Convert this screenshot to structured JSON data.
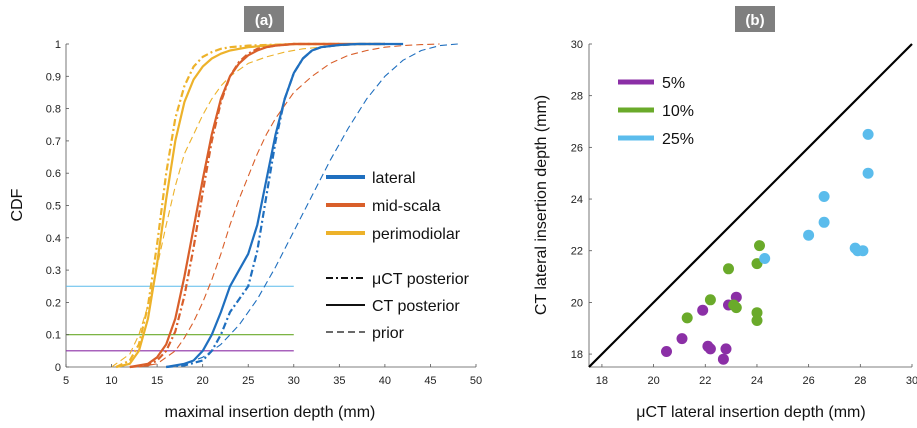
{
  "panel_a": {
    "tag": "(a)",
    "chart_data": {
      "type": "line",
      "xlabel": "maximal insertion depth (mm)",
      "ylabel": "CDF",
      "xlim": [
        5,
        50
      ],
      "ylim": [
        0,
        1
      ],
      "xticks": [
        "5",
        "10",
        "15",
        "20",
        "25",
        "30",
        "35",
        "40",
        "45",
        "50"
      ],
      "yticks": [
        "0",
        "0.1",
        "0.2",
        "0.3",
        "0.4",
        "0.5",
        "0.6",
        "0.7",
        "0.8",
        "0.9",
        "1"
      ],
      "legend_position": "center-right",
      "legend_colors": [
        {
          "name": "lateral",
          "color": "#1f6fbf"
        },
        {
          "name": "mid-scala",
          "color": "#d95f2a"
        },
        {
          "name": "perimodiolar",
          "color": "#edb22a"
        }
      ],
      "legend_styles": [
        {
          "name": "μCT posterior",
          "dash": "dashdot"
        },
        {
          "name": "CT posterior",
          "dash": "solid"
        },
        {
          "name": "prior",
          "dash": "dashed"
        }
      ],
      "threshold_lines": [
        {
          "y": 0.05,
          "color": "#8b2fa6"
        },
        {
          "y": 0.1,
          "color": "#6aaa2a"
        },
        {
          "y": 0.25,
          "color": "#5bbcec"
        }
      ],
      "threshold_x_range": [
        5,
        30
      ],
      "curves": [
        {
          "group": "perimodiolar",
          "style": "solid",
          "x": [
            10.5,
            12,
            13,
            14,
            15,
            16,
            17,
            18,
            19,
            20,
            21,
            22,
            23,
            25,
            27,
            30,
            35,
            40
          ],
          "y": [
            0,
            0.01,
            0.05,
            0.15,
            0.32,
            0.52,
            0.7,
            0.82,
            0.89,
            0.93,
            0.955,
            0.97,
            0.98,
            0.99,
            0.995,
            1,
            1,
            1
          ]
        },
        {
          "group": "perimodiolar",
          "style": "dashdot",
          "x": [
            10.5,
            12,
            13,
            14,
            15,
            16,
            17,
            18,
            19,
            20,
            21,
            22,
            23,
            25,
            30,
            35
          ],
          "y": [
            0,
            0.02,
            0.07,
            0.19,
            0.38,
            0.6,
            0.77,
            0.87,
            0.93,
            0.96,
            0.975,
            0.985,
            0.99,
            0.995,
            1,
            1
          ]
        },
        {
          "group": "perimodiolar",
          "style": "dashed",
          "x": [
            10,
            12,
            13,
            14,
            15,
            16,
            17,
            18,
            19,
            20,
            21,
            22,
            23,
            24,
            25,
            27,
            29,
            31,
            34,
            37,
            40
          ],
          "y": [
            0,
            0.04,
            0.1,
            0.19,
            0.31,
            0.44,
            0.56,
            0.66,
            0.72,
            0.78,
            0.83,
            0.87,
            0.9,
            0.92,
            0.94,
            0.96,
            0.975,
            0.985,
            0.993,
            0.998,
            1
          ]
        },
        {
          "group": "mid-scala",
          "style": "solid",
          "x": [
            12,
            14,
            15,
            16,
            17,
            18,
            19,
            20,
            21,
            22,
            23,
            24,
            25,
            26,
            27,
            28,
            30,
            33,
            36,
            40
          ],
          "y": [
            0,
            0.01,
            0.03,
            0.07,
            0.15,
            0.28,
            0.43,
            0.58,
            0.72,
            0.83,
            0.9,
            0.94,
            0.965,
            0.98,
            0.99,
            0.995,
            1,
            1,
            1,
            1
          ]
        },
        {
          "group": "mid-scala",
          "style": "dashdot",
          "x": [
            12,
            14,
            15,
            16,
            17,
            18,
            19,
            20,
            21,
            22,
            23,
            24,
            25,
            26,
            28,
            30,
            35
          ],
          "y": [
            0,
            0.005,
            0.02,
            0.05,
            0.11,
            0.22,
            0.37,
            0.54,
            0.7,
            0.82,
            0.9,
            0.945,
            0.97,
            0.985,
            0.995,
            1,
            1
          ]
        },
        {
          "group": "mid-scala",
          "style": "dashed",
          "x": [
            13,
            15,
            16,
            17,
            18,
            19,
            20,
            21,
            22,
            23,
            24,
            25,
            26,
            27,
            28,
            29,
            30,
            32,
            34,
            36,
            38,
            40,
            42,
            44,
            46
          ],
          "y": [
            0,
            0.01,
            0.03,
            0.05,
            0.09,
            0.14,
            0.2,
            0.27,
            0.35,
            0.44,
            0.52,
            0.59,
            0.66,
            0.72,
            0.77,
            0.81,
            0.85,
            0.9,
            0.94,
            0.965,
            0.98,
            0.99,
            0.995,
            0.998,
            1
          ]
        },
        {
          "group": "lateral",
          "style": "solid",
          "x": [
            16,
            18,
            19,
            20,
            21,
            22,
            23,
            24,
            25,
            26,
            27,
            28,
            29,
            30,
            31,
            32,
            33,
            35,
            37,
            40,
            42
          ],
          "y": [
            0,
            0.01,
            0.02,
            0.05,
            0.1,
            0.17,
            0.25,
            0.3,
            0.35,
            0.44,
            0.58,
            0.72,
            0.83,
            0.91,
            0.955,
            0.98,
            0.99,
            0.997,
            1,
            1,
            1
          ]
        },
        {
          "group": "lateral",
          "style": "dashdot",
          "x": [
            16,
            18,
            20,
            21,
            22,
            23,
            24,
            25,
            26,
            27,
            28,
            29,
            30,
            31,
            32,
            33,
            35,
            37,
            40
          ],
          "y": [
            0,
            0.005,
            0.02,
            0.05,
            0.1,
            0.17,
            0.21,
            0.25,
            0.36,
            0.53,
            0.7,
            0.83,
            0.91,
            0.955,
            0.98,
            0.99,
            0.997,
            1,
            1
          ]
        },
        {
          "group": "lateral",
          "style": "dashed",
          "x": [
            16,
            18,
            20,
            22,
            24,
            26,
            28,
            30,
            32,
            34,
            36,
            38,
            40,
            42,
            44,
            46,
            48
          ],
          "y": [
            0,
            0.01,
            0.03,
            0.07,
            0.13,
            0.21,
            0.31,
            0.42,
            0.53,
            0.64,
            0.74,
            0.83,
            0.9,
            0.95,
            0.98,
            0.995,
            1
          ]
        }
      ]
    }
  },
  "panel_b": {
    "tag": "(b)",
    "chart_data": {
      "type": "scatter",
      "xlabel": "μCT lateral insertion depth (mm)",
      "ylabel": "CT lateral insertion depth (mm)",
      "xlim": [
        17.5,
        30
      ],
      "ylim": [
        17.5,
        30
      ],
      "xticks": [
        "18",
        "20",
        "22",
        "24",
        "26",
        "28",
        "30"
      ],
      "yticks": [
        "18",
        "20",
        "22",
        "24",
        "26",
        "28",
        "30"
      ],
      "identity_line": true,
      "legend_position": "top-left",
      "series": [
        {
          "name": "5%",
          "color": "#8b2fa6",
          "points": [
            [
              20.5,
              18.1
            ],
            [
              21.1,
              18.6
            ],
            [
              21.9,
              19.7
            ],
            [
              22.1,
              18.3
            ],
            [
              22.2,
              18.2
            ],
            [
              22.7,
              17.8
            ],
            [
              22.8,
              18.2
            ],
            [
              22.9,
              19.9
            ],
            [
              23.2,
              20.2
            ]
          ]
        },
        {
          "name": "10%",
          "color": "#6aaa2a",
          "points": [
            [
              21.3,
              19.4
            ],
            [
              22.2,
              20.1
            ],
            [
              22.9,
              21.3
            ],
            [
              23.1,
              19.9
            ],
            [
              23.2,
              19.8
            ],
            [
              24.0,
              19.3
            ],
            [
              24.0,
              19.6
            ],
            [
              24.0,
              21.5
            ],
            [
              24.1,
              22.2
            ]
          ]
        },
        {
          "name": "25%",
          "color": "#5bbcec",
          "points": [
            [
              24.3,
              21.7
            ],
            [
              26.0,
              22.6
            ],
            [
              26.6,
              23.1
            ],
            [
              26.6,
              24.1
            ],
            [
              27.8,
              22.1
            ],
            [
              27.9,
              22.0
            ],
            [
              28.1,
              22.0
            ],
            [
              28.3,
              25.0
            ],
            [
              28.3,
              26.5
            ]
          ]
        }
      ]
    }
  }
}
